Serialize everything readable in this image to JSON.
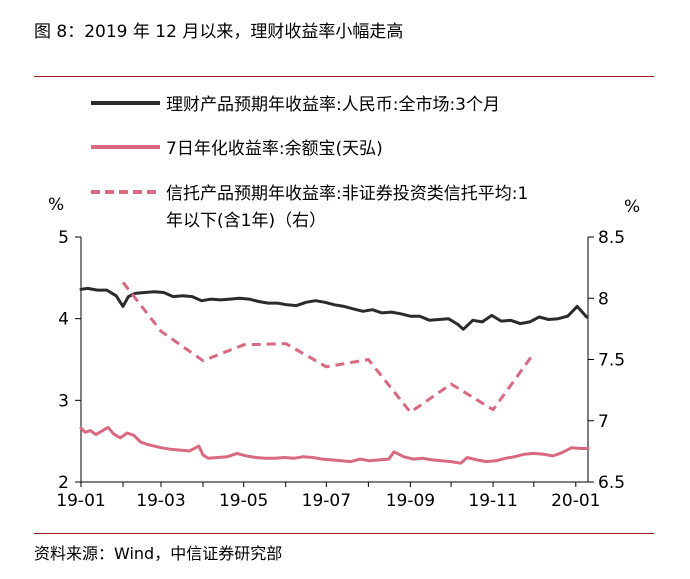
{
  "figure": {
    "title": "图 8：2019 年 12 月以来，理财收益率小幅走高",
    "source": "资料来源：Wind，中信证券研究部"
  },
  "chart_data": {
    "type": "line",
    "title": "",
    "xlabel": "",
    "ylabel_left": "%",
    "ylabel_right": "%",
    "x_ticks": [
      "19-01",
      "19-03",
      "19-05",
      "19-07",
      "19-09",
      "19-11",
      "20-01"
    ],
    "ylim_left": [
      2,
      5
    ],
    "yticks_left": [
      "2",
      "3",
      "4",
      "5"
    ],
    "ylim_right": [
      6.5,
      8.5
    ],
    "yticks_right": [
      "6.5",
      "7",
      "7.5",
      "8",
      "8.5"
    ],
    "grid": false,
    "legend_position": "top",
    "legend": [
      {
        "label": "理财产品预期年收益率:人民币:全市场:3个月",
        "series": 0
      },
      {
        "label": "7日年化收益率:余额宝(天弘)",
        "series": 1
      },
      {
        "label_line1": "信托产品预期年收益率:非证券投资类信托平均:1",
        "label_line2": "年以下(含1年)（右）",
        "series": 2
      }
    ],
    "series": [
      {
        "name": "理财产品预期年收益率:人民币:全市场:3个月",
        "axis": "left",
        "color": "#2b2b2b",
        "style": "solid",
        "points": [
          [
            "2019-01-01",
            4.36
          ],
          [
            "2019-01-06",
            4.37
          ],
          [
            "2019-01-13",
            4.35
          ],
          [
            "2019-01-20",
            4.35
          ],
          [
            "2019-01-27",
            4.28
          ],
          [
            "2019-02-01",
            4.15
          ],
          [
            "2019-02-05",
            4.27
          ],
          [
            "2019-02-10",
            4.31
          ],
          [
            "2019-02-17",
            4.32
          ],
          [
            "2019-02-24",
            4.33
          ],
          [
            "2019-03-03",
            4.32
          ],
          [
            "2019-03-10",
            4.27
          ],
          [
            "2019-03-17",
            4.28
          ],
          [
            "2019-03-24",
            4.27
          ],
          [
            "2019-03-31",
            4.22
          ],
          [
            "2019-04-07",
            4.24
          ],
          [
            "2019-04-14",
            4.23
          ],
          [
            "2019-04-21",
            4.24
          ],
          [
            "2019-04-28",
            4.25
          ],
          [
            "2019-05-05",
            4.24
          ],
          [
            "2019-05-12",
            4.21
          ],
          [
            "2019-05-19",
            4.19
          ],
          [
            "2019-05-26",
            4.19
          ],
          [
            "2019-06-02",
            4.17
          ],
          [
            "2019-06-09",
            4.16
          ],
          [
            "2019-06-16",
            4.2
          ],
          [
            "2019-06-23",
            4.22
          ],
          [
            "2019-06-30",
            4.2
          ],
          [
            "2019-07-07",
            4.17
          ],
          [
            "2019-07-14",
            4.15
          ],
          [
            "2019-07-21",
            4.12
          ],
          [
            "2019-07-28",
            4.09
          ],
          [
            "2019-08-04",
            4.11
          ],
          [
            "2019-08-11",
            4.07
          ],
          [
            "2019-08-18",
            4.08
          ],
          [
            "2019-08-25",
            4.06
          ],
          [
            "2019-09-01",
            4.03
          ],
          [
            "2019-09-08",
            4.03
          ],
          [
            "2019-09-15",
            3.98
          ],
          [
            "2019-09-22",
            3.99
          ],
          [
            "2019-09-29",
            4.0
          ],
          [
            "2019-10-06",
            3.93
          ],
          [
            "2019-10-10",
            3.87
          ],
          [
            "2019-10-17",
            3.98
          ],
          [
            "2019-10-24",
            3.96
          ],
          [
            "2019-10-31",
            4.04
          ],
          [
            "2019-11-07",
            3.97
          ],
          [
            "2019-11-14",
            3.98
          ],
          [
            "2019-11-21",
            3.94
          ],
          [
            "2019-11-28",
            3.96
          ],
          [
            "2019-12-05",
            4.02
          ],
          [
            "2019-12-12",
            3.99
          ],
          [
            "2019-12-19",
            4.0
          ],
          [
            "2019-12-26",
            4.03
          ],
          [
            "2020-01-02",
            4.15
          ],
          [
            "2020-01-09",
            4.02
          ]
        ]
      },
      {
        "name": "7日年化收益率:余额宝(天弘)",
        "axis": "left",
        "color": "#d9697e",
        "style": "solid",
        "points": [
          [
            "2019-01-01",
            2.66
          ],
          [
            "2019-01-04",
            2.61
          ],
          [
            "2019-01-08",
            2.63
          ],
          [
            "2019-01-12",
            2.58
          ],
          [
            "2019-01-17",
            2.63
          ],
          [
            "2019-01-21",
            2.67
          ],
          [
            "2019-01-25",
            2.59
          ],
          [
            "2019-01-30",
            2.54
          ],
          [
            "2019-02-04",
            2.6
          ],
          [
            "2019-02-09",
            2.57
          ],
          [
            "2019-02-14",
            2.49
          ],
          [
            "2019-02-19",
            2.46
          ],
          [
            "2019-02-24",
            2.44
          ],
          [
            "2019-03-01",
            2.42
          ],
          [
            "2019-03-08",
            2.4
          ],
          [
            "2019-03-15",
            2.39
          ],
          [
            "2019-03-22",
            2.38
          ],
          [
            "2019-03-29",
            2.44
          ],
          [
            "2019-04-01",
            2.33
          ],
          [
            "2019-04-05",
            2.29
          ],
          [
            "2019-04-12",
            2.3
          ],
          [
            "2019-04-19",
            2.31
          ],
          [
            "2019-04-26",
            2.35
          ],
          [
            "2019-05-03",
            2.32
          ],
          [
            "2019-05-10",
            2.3
          ],
          [
            "2019-05-17",
            2.29
          ],
          [
            "2019-05-24",
            2.29
          ],
          [
            "2019-05-31",
            2.3
          ],
          [
            "2019-06-07",
            2.29
          ],
          [
            "2019-06-14",
            2.31
          ],
          [
            "2019-06-21",
            2.3
          ],
          [
            "2019-06-28",
            2.28
          ],
          [
            "2019-07-05",
            2.27
          ],
          [
            "2019-07-12",
            2.26
          ],
          [
            "2019-07-19",
            2.25
          ],
          [
            "2019-07-26",
            2.28
          ],
          [
            "2019-08-02",
            2.26
          ],
          [
            "2019-08-09",
            2.27
          ],
          [
            "2019-08-16",
            2.28
          ],
          [
            "2019-08-20",
            2.37
          ],
          [
            "2019-08-27",
            2.31
          ],
          [
            "2019-09-03",
            2.28
          ],
          [
            "2019-09-10",
            2.29
          ],
          [
            "2019-09-17",
            2.27
          ],
          [
            "2019-09-24",
            2.26
          ],
          [
            "2019-10-01",
            2.25
          ],
          [
            "2019-10-08",
            2.23
          ],
          [
            "2019-10-13",
            2.3
          ],
          [
            "2019-10-20",
            2.27
          ],
          [
            "2019-10-27",
            2.25
          ],
          [
            "2019-11-03",
            2.26
          ],
          [
            "2019-11-10",
            2.29
          ],
          [
            "2019-11-17",
            2.31
          ],
          [
            "2019-11-24",
            2.34
          ],
          [
            "2019-12-01",
            2.35
          ],
          [
            "2019-12-08",
            2.34
          ],
          [
            "2019-12-15",
            2.32
          ],
          [
            "2019-12-22",
            2.36
          ],
          [
            "2019-12-29",
            2.42
          ],
          [
            "2020-01-05",
            2.41
          ],
          [
            "2020-01-10",
            2.41
          ]
        ]
      },
      {
        "name": "信托产品预期年收益率:非证券投资类信托平均:1年以下(含1年)（右）",
        "axis": "right",
        "color": "#d9697e",
        "style": "dashed",
        "points": [
          [
            "2019-02-01",
            8.13
          ],
          [
            "2019-03-01",
            7.73
          ],
          [
            "2019-04-01",
            7.49
          ],
          [
            "2019-05-01",
            7.62
          ],
          [
            "2019-06-01",
            7.63
          ],
          [
            "2019-07-01",
            7.44
          ],
          [
            "2019-08-01",
            7.5
          ],
          [
            "2019-09-01",
            7.07
          ],
          [
            "2019-10-01",
            7.3
          ],
          [
            "2019-11-01",
            7.09
          ],
          [
            "2019-12-01",
            7.55
          ]
        ]
      }
    ]
  }
}
